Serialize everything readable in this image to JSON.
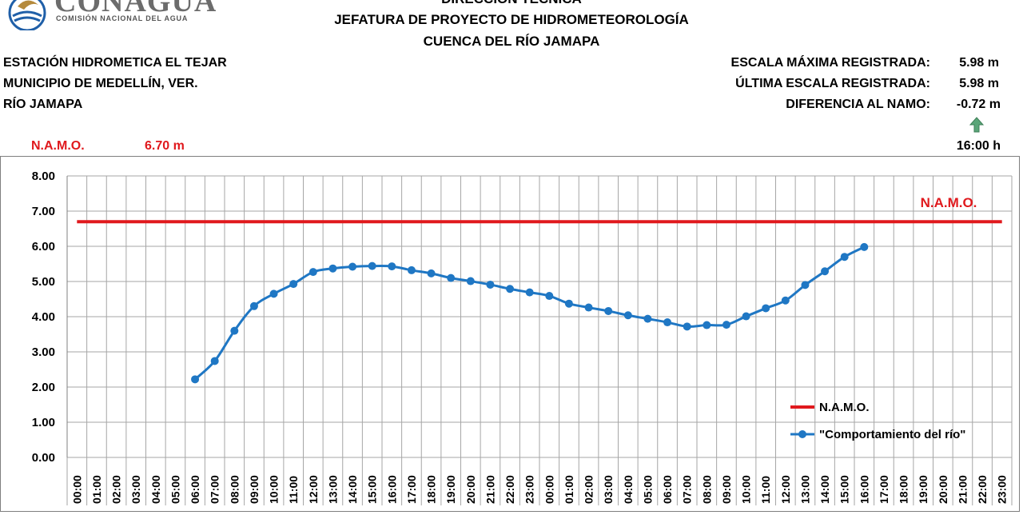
{
  "header": {
    "logo_text": "CONAGUA",
    "logo_subtitle": "COMISIÓN NACIONAL DEL AGUA",
    "line1": "DIRECCIÓN TÉCNICA",
    "line2": "JEFATURA DE PROYECTO DE HIDROMETEOROLOGÍA",
    "line3": "CUENCA DEL RÍO JAMAPA"
  },
  "station": {
    "name": "ESTACIÓN HIDROMETICA EL TEJAR",
    "municipality": "MUNICIPIO DE MEDELLÍN, VER.",
    "river": "RÍO JAMAPA"
  },
  "stats": {
    "max_label": "ESCALA MÁXIMA REGISTRADA:",
    "max_value": "5.98 m",
    "last_label": "ÚLTIMA ESCALA REGISTRADA:",
    "last_value": "5.98 m",
    "diff_label": "DIFERENCIA AL NAMO:",
    "diff_value": "-0.72 m",
    "trend_icon": "up-arrow-icon",
    "trend_color": "#5aa578",
    "time": "16:00 h"
  },
  "namo": {
    "label": "N.A.M.O.",
    "value": "6.70 m",
    "color": "#e0191d"
  },
  "chart_data": {
    "type": "line",
    "ylim": [
      0,
      8
    ],
    "yticks": [
      "0.00",
      "1.00",
      "2.00",
      "3.00",
      "4.00",
      "5.00",
      "6.00",
      "7.00",
      "8.00"
    ],
    "grid": true,
    "legend_position": "bottom-right",
    "x": [
      "00:00",
      "01:00",
      "02:00",
      "03:00",
      "04:00",
      "05:00",
      "06:00",
      "07:00",
      "08:00",
      "09:00",
      "10:00",
      "11:00",
      "12:00",
      "13:00",
      "14:00",
      "15:00",
      "16:00",
      "17:00",
      "18:00",
      "19:00",
      "20:00",
      "21:00",
      "22:00",
      "23:00",
      "00:00",
      "01:00",
      "02:00",
      "03:00",
      "04:00",
      "05:00",
      "06:00",
      "07:00",
      "08:00",
      "09:00",
      "10:00",
      "11:00",
      "12:00",
      "13:00",
      "14:00",
      "15:00",
      "16:00",
      "17:00",
      "18:00",
      "19:00",
      "20:00",
      "21:00",
      "22:00",
      "23:00"
    ],
    "series": [
      {
        "name": "N.A.M.O.",
        "color": "#e0191d",
        "values": [
          6.7,
          6.7,
          6.7,
          6.7,
          6.7,
          6.7,
          6.7,
          6.7,
          6.7,
          6.7,
          6.7,
          6.7,
          6.7,
          6.7,
          6.7,
          6.7,
          6.7,
          6.7,
          6.7,
          6.7,
          6.7,
          6.7,
          6.7,
          6.7,
          6.7,
          6.7,
          6.7,
          6.7,
          6.7,
          6.7,
          6.7,
          6.7,
          6.7,
          6.7,
          6.7,
          6.7,
          6.7,
          6.7,
          6.7,
          6.7,
          6.7,
          6.7,
          6.7,
          6.7,
          6.7,
          6.7,
          6.7,
          6.7
        ]
      },
      {
        "name": "\"Comportamiento del río\"",
        "color": "#1f77c4",
        "values": [
          null,
          null,
          null,
          null,
          null,
          null,
          2.22,
          2.74,
          3.6,
          4.3,
          4.65,
          4.93,
          5.27,
          5.37,
          5.42,
          5.44,
          5.43,
          5.32,
          5.23,
          5.1,
          5.01,
          4.91,
          4.79,
          4.69,
          4.59,
          4.37,
          4.26,
          4.16,
          4.04,
          3.94,
          3.84,
          3.72,
          3.76,
          3.77,
          4.01,
          4.24,
          4.46,
          4.9,
          5.29,
          5.7,
          5.98,
          null,
          null,
          null,
          null,
          null,
          null,
          null
        ]
      }
    ],
    "annotation": "N.A.M.O."
  }
}
